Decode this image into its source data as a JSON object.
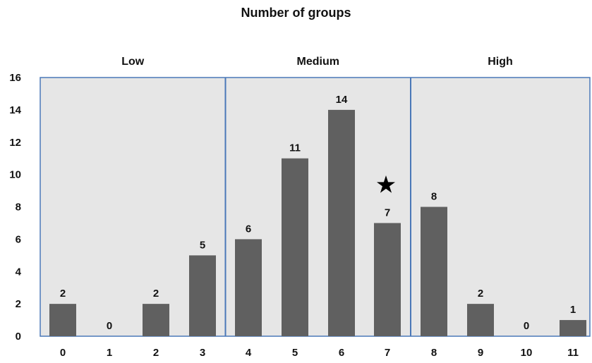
{
  "chart_data": {
    "type": "bar",
    "title": "Number of groups",
    "categories": [
      "0",
      "1",
      "2",
      "3",
      "4",
      "5",
      "6",
      "7",
      "8",
      "9",
      "10",
      "11"
    ],
    "values": [
      2,
      0,
      2,
      5,
      6,
      11,
      14,
      7,
      8,
      2,
      0,
      1
    ],
    "ylim": [
      0,
      16
    ],
    "yticks": [
      "0",
      "2",
      "4",
      "6",
      "8",
      "10",
      "12",
      "14",
      "16"
    ],
    "xlabel": "",
    "ylabel": "",
    "regions": [
      {
        "label": "Low",
        "categories": [
          "0",
          "1",
          "2",
          "3"
        ]
      },
      {
        "label": "Medium",
        "categories": [
          "4",
          "5",
          "6",
          "7"
        ]
      },
      {
        "label": "High",
        "categories": [
          "8",
          "9",
          "10",
          "11"
        ]
      }
    ],
    "annotations": [
      {
        "category": "7",
        "symbol": "★"
      }
    ],
    "colors": {
      "bar": "#606060",
      "plot_background": "#e6e6e6",
      "region_border": "#4a78b8"
    }
  }
}
